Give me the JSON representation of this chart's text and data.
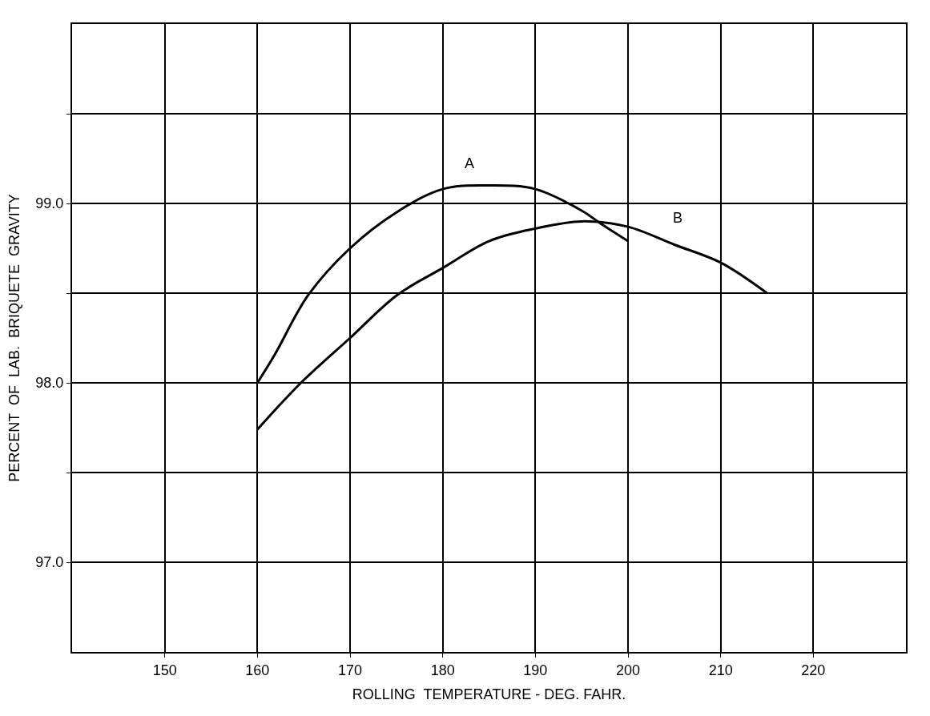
{
  "chart_data": {
    "type": "line",
    "xlabel": "ROLLING  TEMPERATURE - DEG. FAHR.",
    "ylabel": "PERCENT  OF  LAB.  BRIQUETE  GRAVITY",
    "xlim": [
      140,
      230
    ],
    "ylim": [
      96.5,
      100.0
    ],
    "xticks": [
      150,
      160,
      170,
      180,
      190,
      200,
      210,
      220
    ],
    "yticks": [
      {
        "value": 97.0,
        "label": "97.0"
      },
      {
        "value": 97.5,
        "label": null
      },
      {
        "value": 98.0,
        "label": "98.0"
      },
      {
        "value": 98.5,
        "label": null
      },
      {
        "value": 99.0,
        "label": "99.0"
      },
      {
        "value": 99.5,
        "label": null
      }
    ],
    "grid": true,
    "marker": "none",
    "line_style": "solid",
    "legend": false,
    "series": [
      {
        "name": "A",
        "color": "#000000",
        "x": [
          160,
          161.9,
          165.5,
          170,
          175,
          180,
          185,
          190,
          195,
          197,
          200
        ],
        "values": [
          98.0,
          98.16,
          98.49,
          98.75,
          98.95,
          99.08,
          99.1,
          99.08,
          98.96,
          98.89,
          98.79
        ]
      },
      {
        "name": "B",
        "color": "#000000",
        "x": [
          160,
          164.7,
          170,
          175.1,
          180,
          185,
          190,
          195,
          200,
          205,
          210,
          215
        ],
        "values": [
          97.74,
          98.0,
          98.25,
          98.49,
          98.64,
          98.79,
          98.86,
          98.9,
          98.87,
          98.77,
          98.67,
          98.5
        ]
      }
    ]
  }
}
